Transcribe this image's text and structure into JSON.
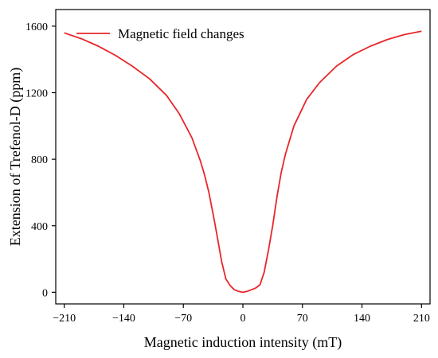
{
  "chart_data": {
    "type": "line",
    "title": "",
    "xlabel": "Magnetic induction intensity (mT)",
    "ylabel": "Extension of Trefenol-D (ppm)",
    "xlim": [
      -220,
      220
    ],
    "ylim": [
      -70,
      1700
    ],
    "xticks": [
      -210,
      -140,
      -70,
      0,
      70,
      140,
      210
    ],
    "xtick_labels": [
      "−210",
      "−140",
      "−70",
      "0",
      "70",
      "140",
      "210"
    ],
    "yticks": [
      0,
      400,
      800,
      1200,
      1600
    ],
    "ytick_labels": [
      "0",
      "400",
      "800",
      "1200",
      "1600"
    ],
    "grid": false,
    "legend_position": "top-left",
    "series": [
      {
        "name": "Magnetic field changes",
        "color": "#e8262a",
        "x": [
          -210,
          -190,
          -170,
          -150,
          -130,
          -110,
          -90,
          -75,
          -60,
          -50,
          -45,
          -40,
          -35,
          -30,
          -25,
          -20,
          -15,
          -10,
          -5,
          0,
          5,
          10,
          15,
          20,
          25,
          30,
          35,
          40,
          45,
          50,
          60,
          75,
          90,
          110,
          130,
          150,
          170,
          190,
          210
        ],
        "y": [
          1560,
          1525,
          1480,
          1425,
          1360,
          1285,
          1185,
          1075,
          930,
          790,
          705,
          600,
          470,
          330,
          185,
          80,
          40,
          15,
          5,
          0,
          5,
          15,
          25,
          45,
          120,
          250,
          400,
          570,
          720,
          830,
          1000,
          1160,
          1260,
          1360,
          1430,
          1480,
          1520,
          1550,
          1570
        ]
      }
    ]
  }
}
